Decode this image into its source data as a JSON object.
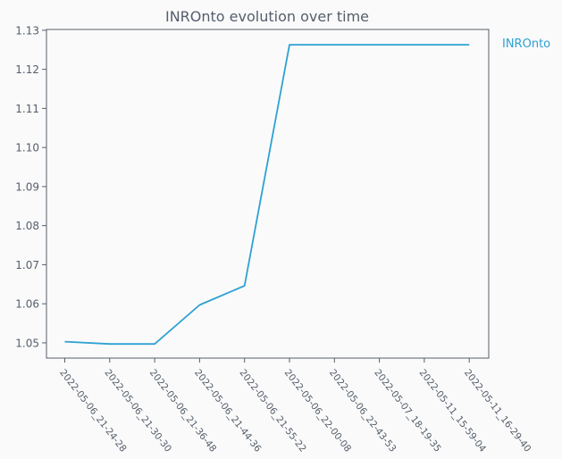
{
  "chart_data": {
    "type": "line",
    "title": "INROnto evolution over time",
    "xlabel": "",
    "ylabel": "",
    "x": [
      "2022-05-06_21-24-28",
      "2022-05-06_21-30-30",
      "2022-05-06_21-36-48",
      "2022-05-06_21-44-36",
      "2022-05-06_21-55-22",
      "2022-05-06_22-00-08",
      "2022-05-06_22-43-53",
      "2022-05-07_18-19-35",
      "2022-05-11_15-59-04",
      "2022-05-11_16-29-40"
    ],
    "series": [
      {
        "name": "INROnto",
        "color": "#2ea1d3",
        "values": [
          1.0503,
          1.0497,
          1.0497,
          1.0597,
          1.0646,
          1.1263,
          1.1263,
          1.1263,
          1.1263,
          1.1263
        ]
      }
    ],
    "yticks": [
      "1.05",
      "1.06",
      "1.07",
      "1.08",
      "1.09",
      "1.10",
      "1.11",
      "1.12",
      "1.13"
    ],
    "ylim": [
      1.0461,
      1.1302
    ],
    "grid": false,
    "legend": "right"
  },
  "colors": {
    "background": "#fafafa",
    "axis": "#555e6b",
    "line": "#2ea1d3"
  }
}
